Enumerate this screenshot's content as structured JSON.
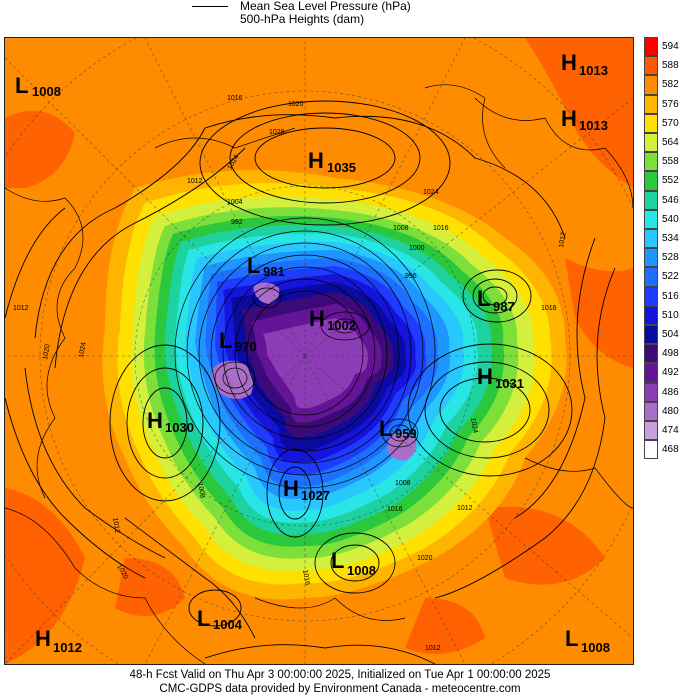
{
  "header": {
    "legend_line_label": "Mean Sea Level Pressure (hPa)",
    "heights_label": "500-hPa Heights (dam)"
  },
  "footer": {
    "line1": "48-h Fcst Valid on Thu Apr  3 00:00:00 2025, Initialized on Tue Apr  1 00:00:00 2025",
    "line2": "CMC-GDPS data provided by Environment Canada - meteocentre.com"
  },
  "colorbar": {
    "levels": [
      {
        "label": "594",
        "color": "#ff0000"
      },
      {
        "label": "588",
        "color": "#ff5a00"
      },
      {
        "label": "582",
        "color": "#ff8c00"
      },
      {
        "label": "576",
        "color": "#ffb400"
      },
      {
        "label": "570",
        "color": "#ffe000"
      },
      {
        "label": "564",
        "color": "#d4f03c"
      },
      {
        "label": "558",
        "color": "#7de03a"
      },
      {
        "label": "552",
        "color": "#2cc83c"
      },
      {
        "label": "546",
        "color": "#1ed2a0"
      },
      {
        "label": "540",
        "color": "#28e6e6"
      },
      {
        "label": "534",
        "color": "#28c8ff"
      },
      {
        "label": "528",
        "color": "#1e96ff"
      },
      {
        "label": "522",
        "color": "#1e6eff"
      },
      {
        "label": "516",
        "color": "#1e3cff"
      },
      {
        "label": "510",
        "color": "#1414dc"
      },
      {
        "label": "504",
        "color": "#0a0aa0"
      },
      {
        "label": "498",
        "color": "#3c0a78"
      },
      {
        "label": "492",
        "color": "#641496"
      },
      {
        "label": "486",
        "color": "#8c3cb4"
      },
      {
        "label": "480",
        "color": "#aa6ec8"
      },
      {
        "label": "474",
        "color": "#c8a0dc"
      },
      {
        "label": "468",
        "color": "#ffffff"
      }
    ]
  },
  "systems": [
    {
      "type": "L",
      "value": "1008"
    },
    {
      "type": "H",
      "value": "1013"
    },
    {
      "type": "H",
      "value": "1013"
    },
    {
      "type": "H",
      "value": "1035"
    },
    {
      "type": "L",
      "value": "981"
    },
    {
      "type": "L",
      "value": "987"
    },
    {
      "type": "H",
      "value": "1002"
    },
    {
      "type": "L",
      "value": "970"
    },
    {
      "type": "H",
      "value": "1031"
    },
    {
      "type": "H",
      "value": "1030"
    },
    {
      "type": "L",
      "value": "959"
    },
    {
      "type": "H",
      "value": "1027"
    },
    {
      "type": "L",
      "value": "1008"
    },
    {
      "type": "L",
      "value": "1004"
    },
    {
      "type": "H",
      "value": "1012"
    },
    {
      "type": "L",
      "value": "1008"
    }
  ],
  "isobar_labels": [
    "1016",
    "1020",
    "1028",
    "1024",
    "1012",
    "1004",
    "992",
    "1008",
    "1000",
    "1024",
    "1016",
    "996",
    "1012",
    "1016",
    "1012",
    "1020",
    "1024",
    "1008",
    "1024",
    "1016",
    "1012",
    "1020",
    "1016",
    "1008",
    "1012",
    "1020",
    "1012"
  ]
}
